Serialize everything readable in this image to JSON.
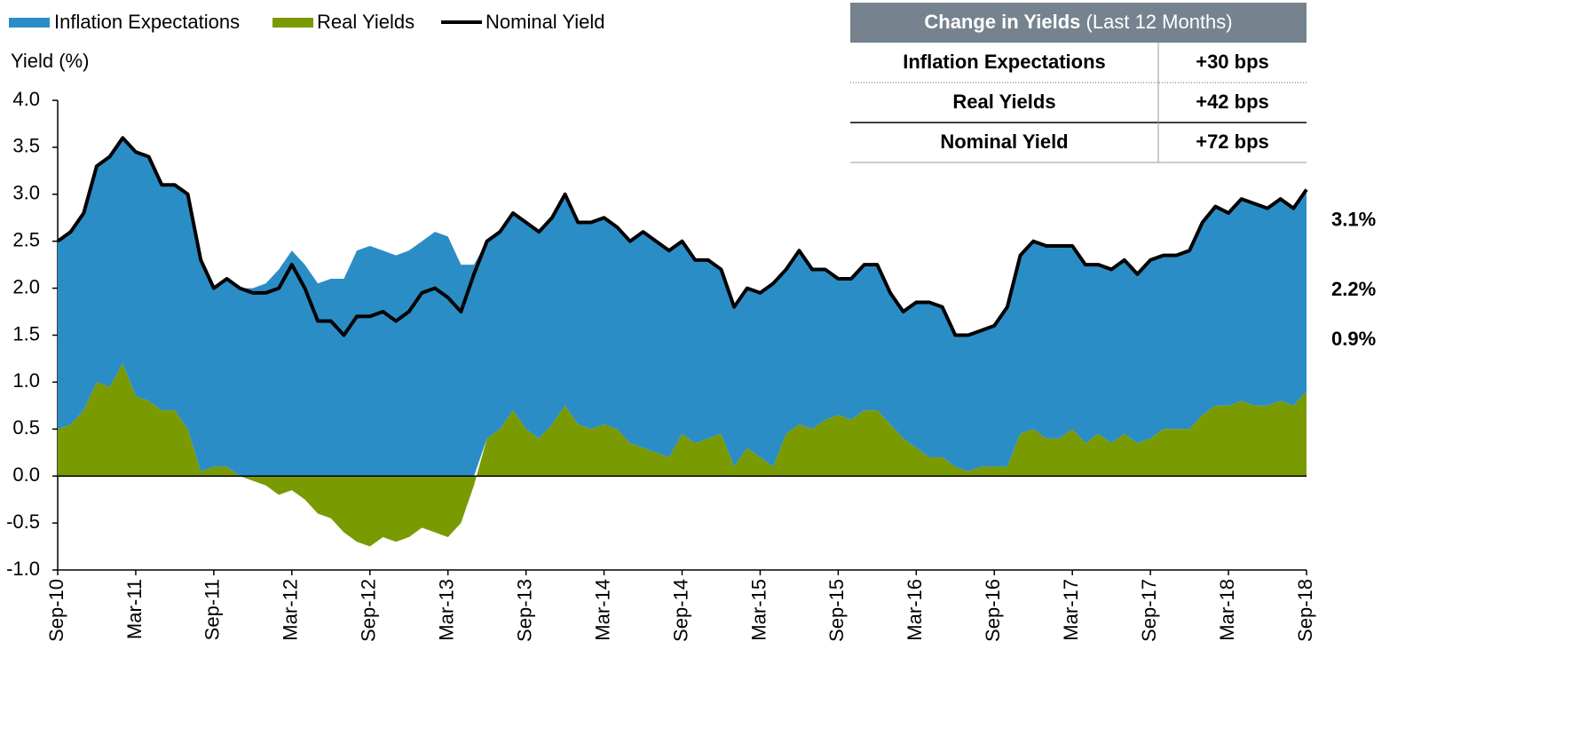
{
  "chart_data": {
    "type": "area",
    "y_label": "Yield (%)",
    "ylim": [
      -1,
      4
    ],
    "yticks": [
      {
        "value": -1,
        "label": "-1.0"
      },
      -0.5,
      {
        "value": 0,
        "label": "0.0"
      },
      0.5,
      {
        "value": 1,
        "label": "1.0"
      },
      1.5,
      {
        "value": 2,
        "label": "2.0"
      },
      2.5,
      {
        "value": 3,
        "label": "3.0"
      },
      3.5,
      {
        "value": 4,
        "label": "4.0"
      }
    ],
    "categories": [
      "Sep-10",
      null,
      null,
      null,
      null,
      null,
      "Mar-11",
      null,
      null,
      null,
      null,
      null,
      "Sep-11",
      null,
      null,
      null,
      null,
      null,
      "Mar-12",
      null,
      null,
      null,
      null,
      null,
      "Sep-12",
      null,
      null,
      null,
      null,
      null,
      "Mar-13",
      null,
      null,
      null,
      null,
      null,
      "Sep-13",
      null,
      null,
      null,
      null,
      null,
      "Mar-14",
      null,
      null,
      null,
      null,
      null,
      "Sep-14",
      null,
      null,
      null,
      null,
      null,
      "Mar-15",
      null,
      null,
      null,
      null,
      null,
      "Sep-15",
      null,
      null,
      null,
      null,
      null,
      "Mar-16",
      null,
      null,
      null,
      null,
      null,
      "Sep-16",
      null,
      null,
      null,
      null,
      null,
      "Mar-17",
      null,
      null,
      null,
      null,
      null,
      "Sep-17",
      null,
      null,
      null,
      null,
      null,
      "Mar-18",
      null,
      null,
      null,
      null,
      null,
      "Sep-18"
    ],
    "series": [
      {
        "name": "Inflation Expectations",
        "color": "#2b8dc5",
        "end_label": "2.2%",
        "values": [
          2.0,
          2.05,
          2.1,
          2.3,
          2.45,
          2.4,
          2.6,
          2.6,
          2.4,
          2.4,
          2.5,
          2.25,
          1.9,
          2.0,
          2.0,
          2.0,
          2.05,
          2.2,
          2.4,
          2.25,
          2.05,
          2.1,
          2.1,
          2.4,
          2.45,
          2.4,
          2.35,
          2.4,
          2.5,
          2.6,
          2.55,
          2.25,
          2.25,
          2.1,
          2.1,
          2.1,
          2.2,
          2.2,
          2.2,
          2.25,
          2.15,
          2.2,
          2.2,
          2.15,
          2.15,
          2.3,
          2.25,
          2.2,
          2.05,
          1.95,
          1.9,
          1.75,
          1.7,
          1.7,
          1.75,
          1.95,
          1.75,
          1.85,
          1.7,
          1.6,
          1.45,
          1.5,
          1.55,
          1.55,
          1.4,
          1.35,
          1.55,
          1.65,
          1.6,
          1.4,
          1.45,
          1.45,
          1.5,
          1.7,
          1.9,
          2.0,
          2.05,
          2.05,
          1.95,
          1.9,
          1.8,
          1.85,
          1.85,
          1.8,
          1.9,
          1.85,
          1.85,
          1.9,
          2.05,
          2.12,
          2.05,
          2.15,
          2.15,
          2.1,
          2.15,
          2.1,
          2.15
        ]
      },
      {
        "name": "Real Yields",
        "color": "#7a9a01",
        "end_label": "0.9%",
        "values": [
          0.5,
          0.55,
          0.7,
          1.0,
          0.95,
          1.2,
          0.85,
          0.8,
          0.7,
          0.7,
          0.5,
          0.05,
          0.1,
          0.1,
          0.0,
          -0.05,
          -0.1,
          -0.2,
          -0.15,
          -0.25,
          -0.4,
          -0.45,
          -0.6,
          -0.7,
          -0.75,
          -0.65,
          -0.7,
          -0.65,
          -0.55,
          -0.6,
          -0.65,
          -0.5,
          -0.1,
          0.4,
          0.5,
          0.7,
          0.5,
          0.4,
          0.55,
          0.75,
          0.55,
          0.5,
          0.55,
          0.5,
          0.35,
          0.3,
          0.25,
          0.2,
          0.45,
          0.35,
          0.4,
          0.45,
          0.1,
          0.3,
          0.2,
          0.1,
          0.45,
          0.55,
          0.5,
          0.6,
          0.65,
          0.6,
          0.7,
          0.7,
          0.55,
          0.4,
          0.3,
          0.2,
          0.2,
          0.1,
          0.05,
          0.1,
          0.1,
          0.1,
          0.45,
          0.5,
          0.4,
          0.4,
          0.5,
          0.35,
          0.45,
          0.35,
          0.45,
          0.35,
          0.4,
          0.5,
          0.5,
          0.5,
          0.65,
          0.75,
          0.75,
          0.8,
          0.75,
          0.75,
          0.8,
          0.75,
          0.9
        ]
      },
      {
        "name": "Nominal Yield",
        "color": "#000000",
        "end_label": "3.1%",
        "values": [
          2.5,
          2.6,
          2.8,
          3.3,
          3.4,
          3.6,
          3.45,
          3.4,
          3.1,
          3.1,
          3.0,
          2.3,
          2.0,
          2.1,
          2.0,
          1.95,
          1.95,
          2.0,
          2.25,
          2.0,
          1.65,
          1.65,
          1.5,
          1.7,
          1.7,
          1.75,
          1.65,
          1.75,
          1.95,
          2.0,
          1.9,
          1.75,
          2.15,
          2.5,
          2.6,
          2.8,
          2.7,
          2.6,
          2.75,
          3.0,
          2.7,
          2.7,
          2.75,
          2.65,
          2.5,
          2.6,
          2.5,
          2.4,
          2.5,
          2.3,
          2.3,
          2.2,
          1.8,
          2.0,
          1.95,
          2.05,
          2.2,
          2.4,
          2.2,
          2.2,
          2.1,
          2.1,
          2.25,
          2.25,
          1.95,
          1.75,
          1.85,
          1.85,
          1.8,
          1.5,
          1.5,
          1.55,
          1.6,
          1.8,
          2.35,
          2.5,
          2.45,
          2.45,
          2.45,
          2.25,
          2.25,
          2.2,
          2.3,
          2.15,
          2.3,
          2.35,
          2.35,
          2.4,
          2.7,
          2.87,
          2.8,
          2.95,
          2.9,
          2.85,
          2.95,
          2.85,
          3.05
        ]
      }
    ],
    "table": {
      "title": "Change in Yields",
      "subtitle": "(Last 12 Months)",
      "rows": [
        [
          "Inflation Expectations",
          "+30 bps"
        ],
        [
          "Real Yields",
          "+42 bps"
        ],
        [
          "Nominal Yield",
          "+72 bps"
        ]
      ]
    }
  }
}
